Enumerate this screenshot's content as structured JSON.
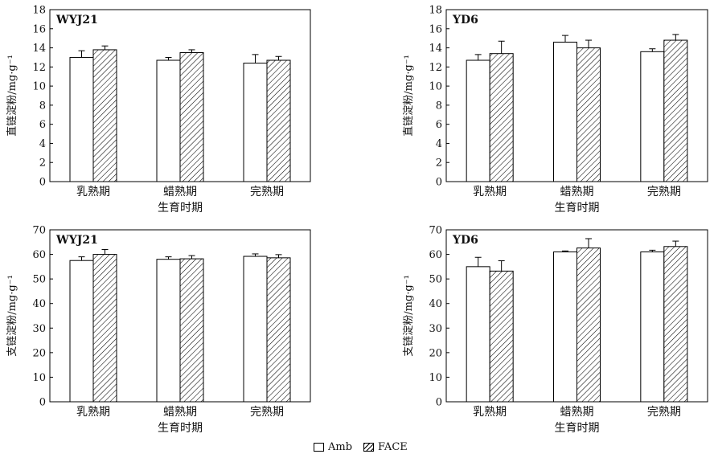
{
  "chart_data": [
    {
      "type": "bar",
      "panel_label": "WYJ21",
      "categories": [
        "乳熟期",
        "蜡熟期",
        "完熟期"
      ],
      "xlabel": "生育时期",
      "ylabel": "直链淀粉/mg·g⁻¹",
      "ylim": [
        0,
        18
      ],
      "yticks": [
        "0",
        "2",
        "4",
        "6",
        "8",
        "10",
        "12",
        "14",
        "16",
        "18"
      ],
      "series": [
        {
          "name": "Amb",
          "values": [
            13.0,
            12.7,
            12.4
          ],
          "errors": [
            0.7,
            0.3,
            0.9
          ]
        },
        {
          "name": "FACE",
          "values": [
            13.8,
            13.5,
            12.7
          ],
          "errors": [
            0.4,
            0.3,
            0.4
          ]
        }
      ]
    },
    {
      "type": "bar",
      "panel_label": "YD6",
      "categories": [
        "乳熟期",
        "蜡熟期",
        "完熟期"
      ],
      "xlabel": "生育时期",
      "ylabel": "直链淀粉/mg·g⁻¹",
      "ylim": [
        0,
        18
      ],
      "yticks": [
        "0",
        "2",
        "4",
        "6",
        "8",
        "10",
        "12",
        "14",
        "16",
        "18"
      ],
      "series": [
        {
          "name": "Amb",
          "values": [
            12.7,
            14.6,
            13.6
          ],
          "errors": [
            0.6,
            0.7,
            0.3
          ]
        },
        {
          "name": "FACE",
          "values": [
            13.4,
            14.0,
            14.8
          ],
          "errors": [
            1.3,
            0.8,
            0.6
          ]
        }
      ]
    },
    {
      "type": "bar",
      "panel_label": "WYJ21",
      "categories": [
        "乳熟期",
        "蜡熟期",
        "完熟期"
      ],
      "xlabel": "生育时期",
      "ylabel": "支链淀粉/mg·g⁻¹",
      "ylim": [
        0,
        70
      ],
      "yticks": [
        "0",
        "10",
        "20",
        "30",
        "40",
        "50",
        "60",
        "70"
      ],
      "series": [
        {
          "name": "Amb",
          "values": [
            57.5,
            58.0,
            59.2
          ],
          "errors": [
            1.5,
            1.0,
            1.0
          ]
        },
        {
          "name": "FACE",
          "values": [
            60.0,
            58.2,
            58.6
          ],
          "errors": [
            2.0,
            1.3,
            1.3
          ]
        }
      ]
    },
    {
      "type": "bar",
      "panel_label": "YD6",
      "categories": [
        "乳熟期",
        "蜡熟期",
        "完熟期"
      ],
      "xlabel": "生育时期",
      "ylabel": "支链淀粉/mg·g⁻¹",
      "ylim": [
        0,
        70
      ],
      "yticks": [
        "0",
        "10",
        "20",
        "30",
        "40",
        "50",
        "60",
        "70"
      ],
      "series": [
        {
          "name": "Amb",
          "values": [
            55.0,
            61.0,
            61.0
          ],
          "errors": [
            3.8,
            0.4,
            0.7
          ]
        },
        {
          "name": "FACE",
          "values": [
            53.2,
            62.6,
            63.2
          ],
          "errors": [
            4.2,
            3.8,
            2.2
          ]
        }
      ]
    }
  ],
  "legend": {
    "amb_label": "Amb",
    "face_label": "FACE"
  }
}
